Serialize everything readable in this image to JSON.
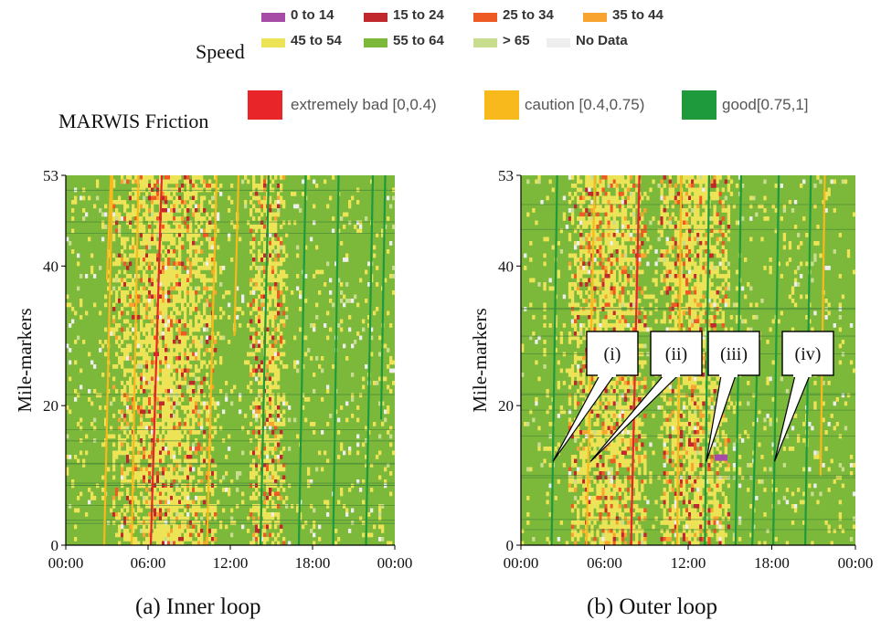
{
  "legend": {
    "speed_title": "Speed",
    "speed_items": [
      {
        "label": "0 to 14",
        "color": "#a64ca6"
      },
      {
        "label": "15 to 24",
        "color": "#c0282d"
      },
      {
        "label": "25 to 34",
        "color": "#ee5a24"
      },
      {
        "label": "35 to 44",
        "color": "#f7a530"
      },
      {
        "label": "45 to 54",
        "color": "#ece356"
      },
      {
        "label": "55 to 64",
        "color": "#7cb83a"
      },
      {
        "label": "> 65",
        "color": "#c9dd8f"
      },
      {
        "label": "No Data",
        "color": "#eeeeee"
      }
    ],
    "friction_title": "MARWIS Friction",
    "friction_items": [
      {
        "label": "extremely bad [0,0.4)",
        "color": "#e8262a"
      },
      {
        "label": "caution [0.4,0.75)",
        "color": "#f8b91c"
      },
      {
        "label": "good[0.75,1]",
        "color": "#1e9a3c"
      }
    ]
  },
  "chart_data": [
    {
      "type": "heatmap",
      "caption": "(a)  Inner loop",
      "ylabel": "Mile-markers",
      "xticks": [
        "00:00",
        "06:00",
        "12:00",
        "18:00",
        "00:00"
      ],
      "yticks": [
        "0",
        "20",
        "40",
        "53"
      ],
      "xlim": [
        0,
        24
      ],
      "ylim": [
        0,
        53
      ],
      "dominant_speed": "55 to 64",
      "slow_bands_hours": [
        [
          3.5,
          11
        ],
        [
          13.5,
          16
        ]
      ]
    },
    {
      "type": "heatmap",
      "caption": "(b) Outer loop",
      "ylabel": "Mile-markers",
      "xticks": [
        "00:00",
        "06:00",
        "12:00",
        "18:00",
        "00:00"
      ],
      "yticks": [
        "0",
        "20",
        "40",
        "53"
      ],
      "xlim": [
        0,
        24
      ],
      "ylim": [
        0,
        53
      ],
      "dominant_speed": "55 to 64",
      "slow_bands_hours": [
        [
          3.5,
          9
        ],
        [
          10,
          15
        ]
      ],
      "annotations": [
        {
          "label": "(i)",
          "time_h": 2.3,
          "mile": 12
        },
        {
          "label": "(ii)",
          "time_h": 5.0,
          "mile": 12
        },
        {
          "label": "(iii)",
          "time_h": 13.3,
          "mile": 12
        },
        {
          "label": "(iv)",
          "time_h": 18.2,
          "mile": 12
        }
      ]
    }
  ]
}
